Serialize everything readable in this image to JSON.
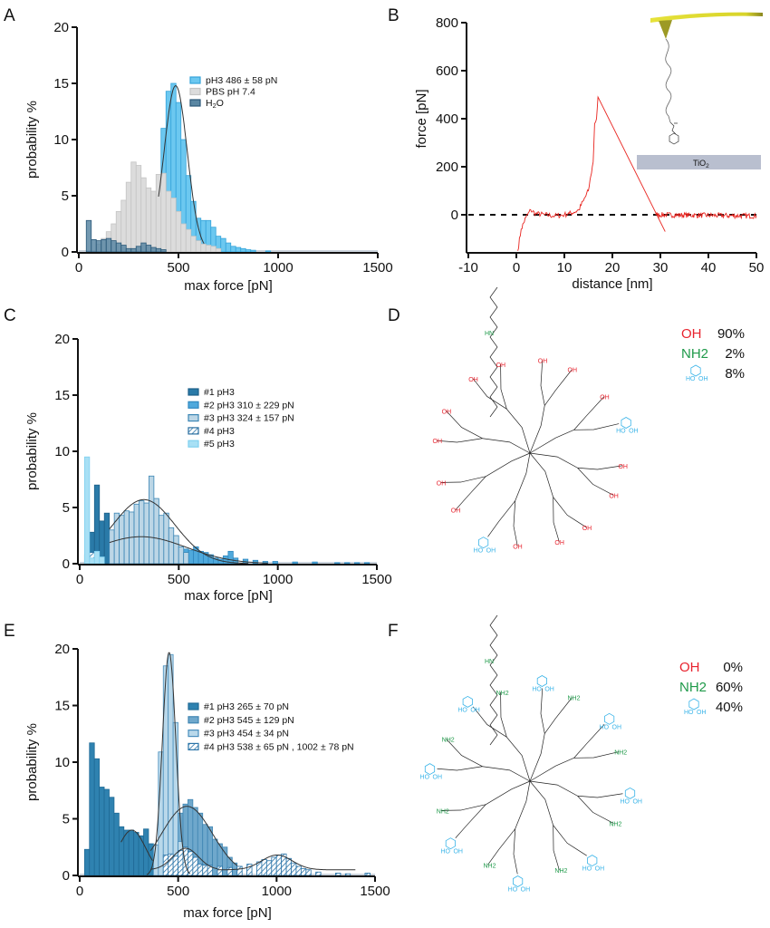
{
  "panel_letters": [
    "A",
    "B",
    "C",
    "D",
    "E",
    "F"
  ],
  "chart_data": [
    {
      "panel": "A",
      "type": "bar",
      "xlabel": "max force [pN]",
      "ylabel": "probability %",
      "xlim": [
        0,
        1500
      ],
      "ylim": [
        0,
        20
      ],
      "xticks": [
        "0",
        "500",
        "1000",
        "1500"
      ],
      "yticks": [
        "0",
        "5",
        "10",
        "15",
        "20"
      ],
      "bin_width": 25,
      "legend_position": "upper-right",
      "series": [
        {
          "name": "pH3 486 ± 58 pN",
          "color": "#6cc8f0",
          "edge": "#35a4da",
          "style": "solid",
          "x": [
            425,
            450,
            475,
            500,
            525,
            550,
            575,
            600,
            625,
            650,
            675,
            700,
            725,
            750,
            775,
            800,
            825,
            850,
            875,
            950
          ],
          "values": [
            11,
            14.3,
            15,
            13.3,
            10,
            6.8,
            4.5,
            3.0,
            2.8,
            2.8,
            2.2,
            1.4,
            1.2,
            0.8,
            0.5,
            0.4,
            0.3,
            0.2,
            0.15,
            0.1
          ]
        },
        {
          "name": "PBS pH 7.4",
          "color": "#dcdcdc",
          "edge": "#c4c4c4",
          "style": "solid",
          "x": [
            100,
            125,
            150,
            175,
            200,
            225,
            250,
            275,
            300,
            325,
            350,
            375,
            400,
            425,
            450,
            475,
            500,
            525,
            550,
            575,
            600,
            625,
            650,
            675,
            700
          ],
          "values": [
            0.7,
            1.2,
            1.8,
            2.5,
            3.6,
            4.6,
            6.2,
            8.0,
            7.7,
            6.6,
            5.7,
            5.4,
            6.9,
            7.0,
            5.4,
            4.8,
            3.6,
            2.5,
            2.0,
            1.4,
            1.0,
            0.7,
            0.6,
            0.5,
            0.3
          ]
        },
        {
          "name": "H2O",
          "color": "#5a87a3",
          "edge": "#2a5878",
          "style": "solid",
          "x": [
            50,
            75,
            100,
            125,
            150,
            175,
            200,
            225,
            250,
            275,
            300,
            325,
            350,
            375,
            400,
            425
          ],
          "values": [
            2.8,
            1.1,
            1.0,
            1.1,
            1.2,
            1.0,
            0.8,
            0.6,
            0.3,
            0.3,
            0.5,
            0.8,
            0.6,
            0.4,
            0.3,
            0.2
          ]
        }
      ],
      "legend_labels": {
        "pH3": "pH3 486 ± 58 pN",
        "pbs": "PBS pH 7.4",
        "h2o_main": "H",
        "h2o_sub": "2",
        "h2o_end": "O"
      },
      "fits": [
        {
          "mu": 486,
          "sigma": 58,
          "peak": 14.8,
          "range": [
            400,
            630
          ],
          "baseline": 0
        }
      ]
    },
    {
      "panel": "B",
      "type": "line",
      "xlabel": "distance [nm]",
      "ylabel": "force [pN]",
      "xlim": [
        -10,
        50
      ],
      "ylim": [
        -150,
        800
      ],
      "xticks": [
        "-10",
        "0",
        "10",
        "20",
        "30",
        "40",
        "50"
      ],
      "yticks": [
        "0",
        "200",
        "400",
        "600",
        "800"
      ],
      "color": "#e8231e",
      "baseline": 0,
      "trace": [
        [
          0.3,
          -150
        ],
        [
          1,
          -60
        ],
        [
          2,
          -10
        ],
        [
          3,
          20
        ],
        [
          4,
          5
        ],
        [
          6,
          0
        ],
        [
          8,
          -5
        ],
        [
          10,
          0
        ],
        [
          11,
          5
        ],
        [
          12,
          10
        ],
        [
          13,
          20
        ],
        [
          14,
          60
        ],
        [
          15,
          100
        ],
        [
          15.5,
          160
        ],
        [
          16,
          220
        ],
        [
          16.3,
          380
        ],
        [
          16.7,
          400
        ],
        [
          17,
          490
        ],
        [
          31,
          -70
        ]
      ],
      "trace_after": [
        [
          29,
          0
        ],
        [
          50,
          -5
        ]
      ],
      "inset_substrate": "TiO",
      "inset_substrate_sub": "2"
    },
    {
      "panel": "C",
      "type": "bar",
      "xlabel": "max force [pN]",
      "ylabel": "probability %",
      "xlim": [
        0,
        1500
      ],
      "ylim": [
        0,
        20
      ],
      "xticks": [
        "0",
        "500",
        "1000",
        "1500"
      ],
      "yticks": [
        "0",
        "5",
        "10",
        "15",
        "20"
      ],
      "bin_width": 25,
      "legend_position": "upper-right",
      "series": [
        {
          "name": "#1 pH3",
          "color": "#2a7aa8",
          "edge": "#1c5f88",
          "style": "solid",
          "x": [
            62,
            87,
            112,
            137,
            162,
            187,
            212
          ],
          "values": [
            2.8,
            7.0,
            3.8,
            4.5,
            1.0,
            0.9,
            1.3
          ]
        },
        {
          "name": "#2 pH3 310 ± 229 pN",
          "color": "#4fa9dc",
          "edge": "#2f88c0",
          "style": "solid",
          "x": [
            162,
            187,
            212,
            237,
            262,
            287,
            312,
            337,
            362,
            387,
            412,
            437,
            462,
            487,
            512,
            537,
            562,
            587,
            612,
            637,
            662,
            687,
            712,
            737,
            762,
            787,
            837,
            887,
            937,
            987,
            1087,
            1187,
            1300,
            1350,
            1400,
            1450
          ],
          "values": [
            2.2,
            2.6,
            2.5,
            2.6,
            3.1,
            2.7,
            3.0,
            2.8,
            2.2,
            1.9,
            1.7,
            1.8,
            1.5,
            1.8,
            1.2,
            1.3,
            1.2,
            1.5,
            1.1,
            1.0,
            0.8,
            0.5,
            0.4,
            0.7,
            1.1,
            0.5,
            0.4,
            0.3,
            0.2,
            0.2,
            0.15,
            0.15,
            0.1,
            0.1,
            0.1,
            0.1
          ]
        },
        {
          "name": "#3 pH3 324 ± 157 pN",
          "color": "#bcd6e6",
          "edge": "#3b86b5",
          "style": "solid",
          "x": [
            162,
            187,
            212,
            237,
            262,
            287,
            312,
            337,
            362,
            387,
            412,
            437,
            462,
            487,
            512,
            537
          ],
          "values": [
            3.0,
            4.5,
            4.3,
            4.7,
            4.6,
            5.3,
            5.6,
            5.4,
            7.8,
            5.8,
            4.3,
            4.5,
            3.2,
            2.5,
            1.5,
            1.0
          ]
        },
        {
          "name": "#4 pH3",
          "color": "#ffffff",
          "edge": "#2a6fa0",
          "style": "hatched",
          "x": [
            37,
            62
          ],
          "values": [
            0.8,
            1.0
          ]
        },
        {
          "name": "#5 pH3",
          "color": "#a8e0f5",
          "edge": "#7fd0ef",
          "style": "solid",
          "x": [
            37,
            62,
            87,
            112
          ],
          "values": [
            9.5,
            0.5,
            1.1,
            0.6
          ]
        }
      ],
      "fits": [
        {
          "mu": 310,
          "sigma": 229,
          "peak": 2.4,
          "range": [
            150,
            950
          ],
          "baseline": 0
        },
        {
          "mu": 324,
          "sigma": 157,
          "peak": 5.7,
          "range": [
            150,
            850
          ],
          "baseline": 0
        }
      ]
    },
    {
      "panel": "E",
      "type": "bar",
      "xlabel": "max force [pN]",
      "ylabel": "probability %",
      "xlim": [
        0,
        1500
      ],
      "ylim": [
        0,
        20
      ],
      "xticks": [
        "0",
        "500",
        "1000",
        "1500"
      ],
      "yticks": [
        "0",
        "5",
        "10",
        "15",
        "20"
      ],
      "bin_width": 25,
      "legend_position": "upper-right",
      "series": [
        {
          "name": "#1 pH3 265 ±  70 pN",
          "color": "#2f82b0",
          "edge": "#1f6a96",
          "style": "solid",
          "x": [
            37,
            62,
            87,
            112,
            137,
            162,
            187,
            212,
            237,
            262,
            287,
            312,
            337,
            362,
            387
          ],
          "values": [
            2.3,
            11.7,
            10.3,
            7.8,
            7.6,
            6.9,
            5.5,
            4.3,
            4.0,
            4.0,
            3.8,
            3.5,
            4.1,
            2.8,
            2.6
          ]
        },
        {
          "name": "#2 pH3 545 ± 129 pN",
          "color": "#6fa8cc",
          "edge": "#3f85b2",
          "style": "solid",
          "x": [
            437,
            462,
            487,
            512,
            537,
            562,
            587,
            612,
            637,
            662,
            687,
            712,
            737,
            762,
            787,
            812,
            862,
            912,
            1012,
            1112,
            1212,
            1312,
            1462
          ],
          "values": [
            1.5,
            4.5,
            5.5,
            5.5,
            6.3,
            6.7,
            6.0,
            5.5,
            4.5,
            4.3,
            3.2,
            2.8,
            2.5,
            1.6,
            1.1,
            0.8,
            0.6,
            0.4,
            0.3,
            0.3,
            0.2,
            0.2,
            0.2
          ]
        },
        {
          "name": "#3 pH3 454 ± 34 pN",
          "color": "#b9d8ea",
          "edge": "#4a8fbd",
          "style": "solid",
          "x": [
            387,
            412,
            437,
            462,
            487,
            512
          ],
          "values": [
            2.7,
            10.9,
            18.5,
            19.5,
            13.5,
            3.0
          ]
        },
        {
          "name": "#4 pH3 538 ± 65 pN , 1002 ± 78 pN",
          "color": "#ffffff",
          "edge": "#2a74a8",
          "style": "hatched",
          "x": [
            437,
            462,
            487,
            512,
            537,
            562,
            587,
            612,
            637,
            662,
            712,
            762,
            812,
            862,
            912,
            937,
            962,
            987,
            1012,
            1037,
            1062,
            1087,
            1112,
            1137,
            1162,
            1212,
            1312,
            1362,
            1462
          ],
          "values": [
            1.8,
            1.9,
            1.7,
            2.2,
            2.5,
            2.1,
            1.6,
            1.0,
            0.9,
            0.9,
            0.8,
            0.7,
            0.8,
            1.0,
            1.2,
            1.4,
            1.3,
            1.6,
            1.8,
            1.9,
            1.5,
            1.1,
            0.8,
            0.6,
            0.5,
            0.3,
            0.2,
            0.15,
            0.2
          ]
        }
      ],
      "fits": [
        {
          "mu": 265,
          "sigma": 70,
          "peak": 4.0,
          "range": [
            210,
            370
          ],
          "baseline": 0
        },
        {
          "mu": 545,
          "sigma": 129,
          "peak": 6.1,
          "range": [
            360,
            800
          ],
          "baseline": 0
        },
        {
          "mu": 454,
          "sigma": 34,
          "peak": 19.7,
          "range": [
            340,
            560
          ],
          "baseline": 0
        },
        {
          "mu": 538,
          "sigma": 65,
          "peak": 2.4,
          "range": [
            360,
            700
          ],
          "baseline": 0.5
        },
        {
          "mu": 1002,
          "sigma": 78,
          "peak": 1.8,
          "range": [
            700,
            1400
          ],
          "baseline": 0.5
        }
      ]
    }
  ],
  "structures": {
    "D": {
      "legend": [
        {
          "group": "OH",
          "percent": "90%",
          "color": "#e8232e"
        },
        {
          "group": "NH2",
          "percent": "2%",
          "color": "#1f9a4a"
        },
        {
          "group": "catechol",
          "percent": "8%",
          "color": "#3ab4e8"
        }
      ],
      "terminals": [
        "OH",
        "OH",
        "OH",
        "OH",
        "OH",
        "catechol",
        "OH",
        "OH",
        "OH",
        "OH",
        "OH",
        "OH",
        "OH",
        "OH",
        "OH",
        "catechol"
      ],
      "linker_label": "HN"
    },
    "F": {
      "legend": [
        {
          "group": "OH",
          "percent": "0%",
          "color": "#e8232e"
        },
        {
          "group": "NH2",
          "percent": "60%",
          "color": "#1f9a4a"
        },
        {
          "group": "catechol",
          "percent": "40%",
          "color": "#3ab4e8"
        }
      ],
      "terminals": [
        "catechol",
        "NH2",
        "catechol",
        "NH2",
        "catechol",
        "NH2",
        "catechol",
        "NH2",
        "catechol",
        "NH2",
        "catechol",
        "NH2",
        "catechol",
        "NH2",
        "catechol",
        "NH2"
      ],
      "linker_label": "HN"
    },
    "catechol_labels": [
      "HO",
      "OH"
    ]
  }
}
